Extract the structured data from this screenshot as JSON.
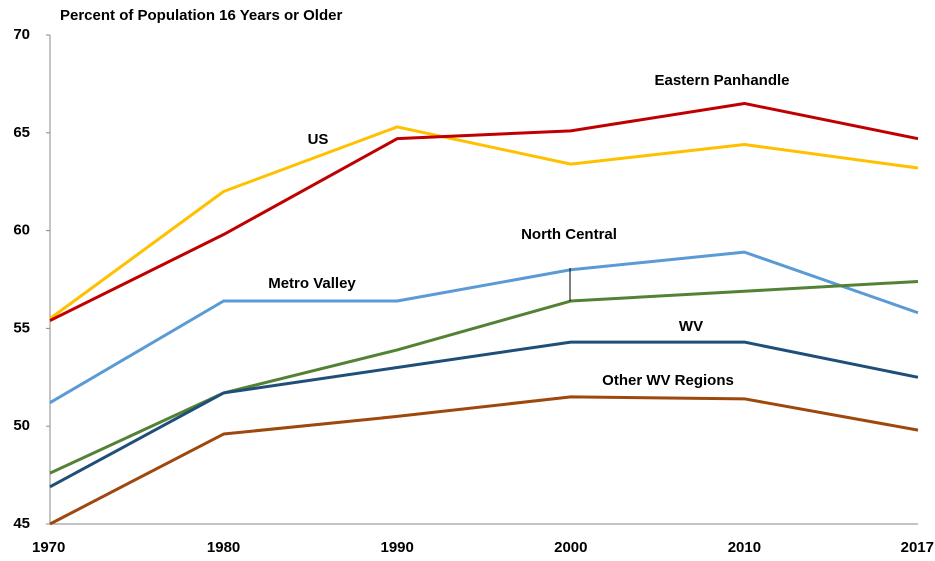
{
  "chart_data": {
    "type": "line",
    "title": "Percent of Population 16 Years or Older",
    "categories": [
      "1970",
      "1980",
      "1990",
      "2000",
      "2010",
      "2017"
    ],
    "ylim": [
      45,
      70
    ],
    "yticks": [
      45,
      50,
      55,
      60,
      65,
      70
    ],
    "series": [
      {
        "name": "US",
        "color": "#ffc000",
        "values": [
          55.5,
          62.0,
          65.3,
          63.4,
          64.4,
          63.2
        ]
      },
      {
        "name": "Eastern Panhandle",
        "color": "#c00000",
        "values": [
          55.4,
          59.8,
          64.7,
          65.1,
          66.5,
          64.7
        ]
      },
      {
        "name": "Metro Valley",
        "color": "#5b9bd5",
        "values": [
          51.2,
          56.4,
          56.4,
          58.0,
          58.9,
          55.8
        ]
      },
      {
        "name": "North Central",
        "color": "#548235",
        "values": [
          47.6,
          51.7,
          53.9,
          56.4,
          56.9,
          57.4
        ]
      },
      {
        "name": "WV",
        "color": "#1f4e79",
        "values": [
          46.9,
          51.7,
          53.0,
          54.3,
          54.3,
          52.5
        ]
      },
      {
        "name": "Other WV Regions",
        "color": "#9e480e",
        "values": [
          45.0,
          49.6,
          50.5,
          51.5,
          51.4,
          49.8
        ]
      }
    ]
  }
}
